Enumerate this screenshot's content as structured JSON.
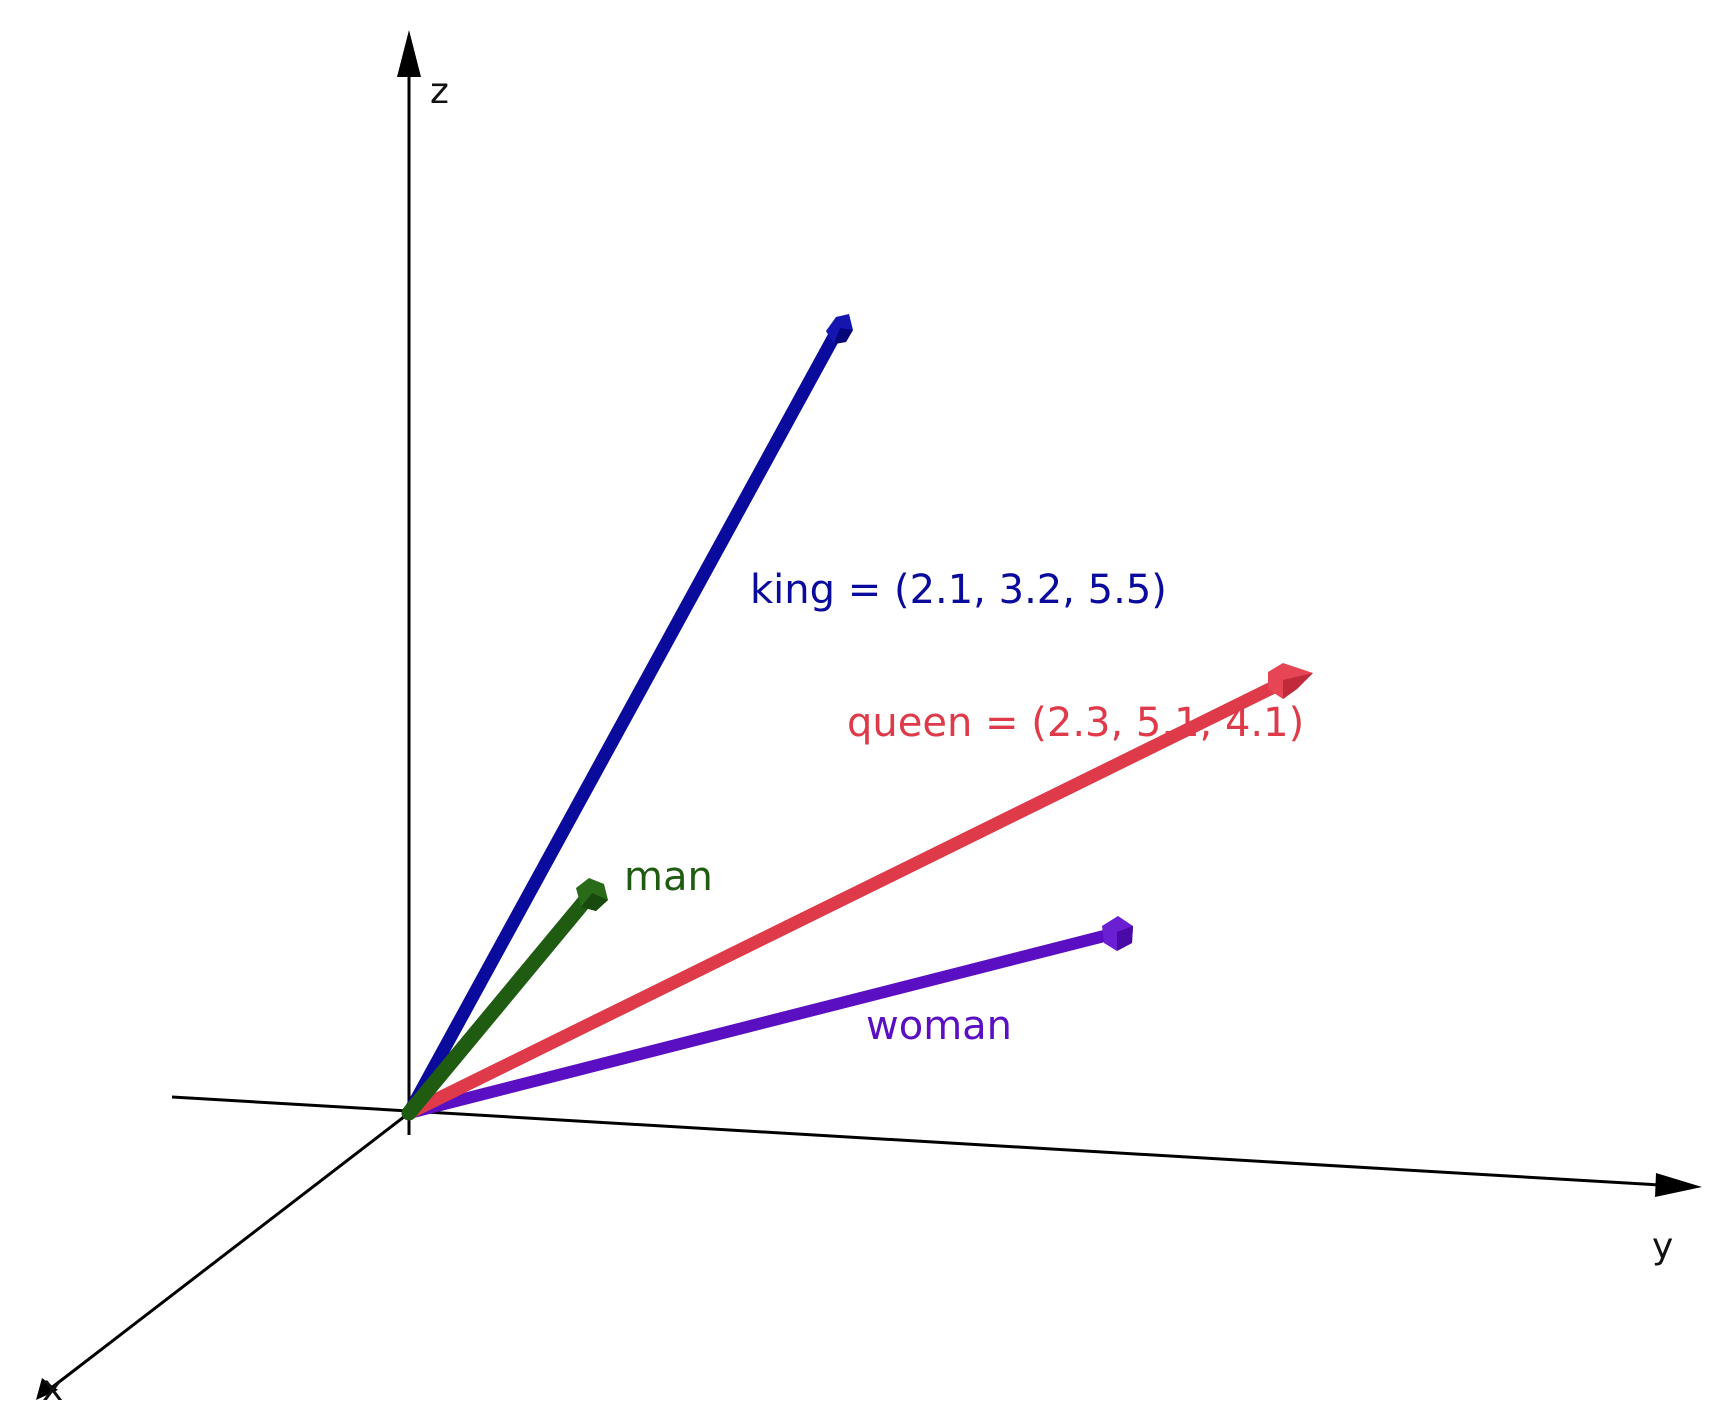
{
  "axes": {
    "x_label": "x",
    "y_label": "y",
    "z_label": "z"
  },
  "vectors": [
    {
      "id": "king",
      "label": "king = (2.1, 3.2, 5.5)",
      "color": "#0a0a9c"
    },
    {
      "id": "queen",
      "label": "queen = (2.3, 5.1, 4.1)",
      "color": "#de3a4a"
    },
    {
      "id": "man",
      "label": "man",
      "color": "#1f5c12"
    },
    {
      "id": "woman",
      "label": "woman",
      "color": "#5b0fc2"
    }
  ],
  "colors": {
    "axis": "#000000",
    "king": "#0a0a9c",
    "queen": "#de3a4a",
    "man": "#1f5c12",
    "woman": "#5b0fc2"
  }
}
